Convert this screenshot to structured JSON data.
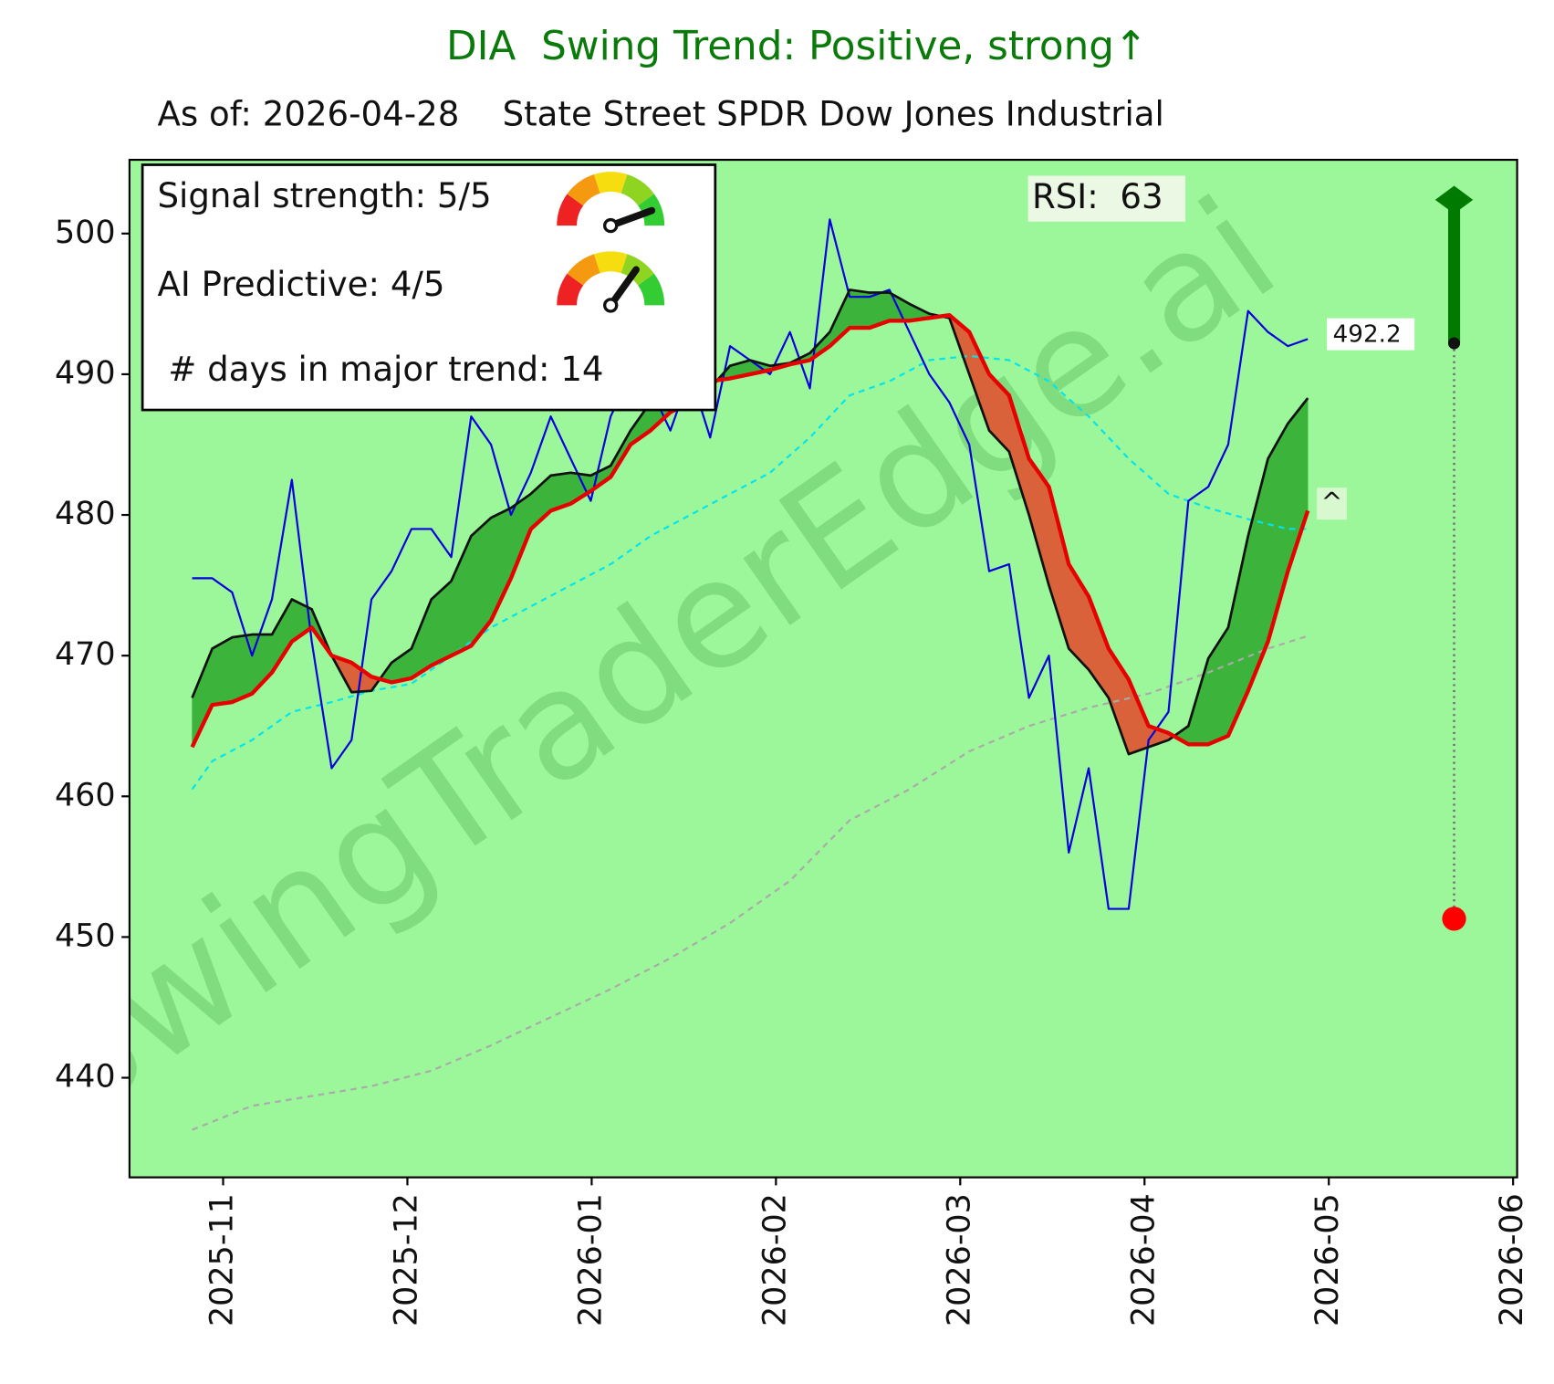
{
  "chart_data": {
    "type": "line",
    "title": "DIA  Swing Trend: Positive, strong↑",
    "subtitle": "As of: 2026-04-28    State Street SPDR Dow Jones Industrial",
    "annotations": {
      "rsi": "RSI:  63",
      "signal": "Signal strength: 5/5",
      "ai": "AI Predictive: 4/5",
      "days": " # days in major trend: 14",
      "marker": "^",
      "watermark": "SwingTraderEdge.ai"
    },
    "xlim": [
      -0.508,
      7.022
    ],
    "xticks": [
      {
        "value": 0,
        "label": "2025-11"
      },
      {
        "value": 1,
        "label": "2025-12"
      },
      {
        "value": 2,
        "label": "2026-01"
      },
      {
        "value": 3,
        "label": "2026-02"
      },
      {
        "value": 4,
        "label": "2026-03"
      },
      {
        "value": 5,
        "label": "2026-04"
      },
      {
        "value": 6,
        "label": "2026-05"
      },
      {
        "value": 7,
        "label": "2026-06"
      }
    ],
    "ylim": [
      432.92,
      505.24
    ],
    "yticks": [
      440,
      450,
      460,
      470,
      480,
      490,
      500
    ],
    "background": "#9cf79a",
    "fill_colors": {
      "above": "#3cb43c",
      "below": "#d9623b"
    },
    "x": [
      -0.168,
      -0.059,
      0.049,
      0.157,
      0.265,
      0.373,
      0.481,
      0.589,
      0.697,
      0.805,
      0.914,
      1.022,
      1.13,
      1.238,
      1.346,
      1.454,
      1.562,
      1.67,
      1.778,
      1.886,
      1.995,
      2.103,
      2.211,
      2.319,
      2.427,
      2.535,
      2.643,
      2.751,
      2.859,
      2.968,
      3.076,
      3.184,
      3.292,
      3.4,
      3.508,
      3.616,
      3.724,
      3.832,
      3.941,
      4.049,
      4.157,
      4.265,
      4.373,
      4.481,
      4.589,
      4.697,
      4.805,
      4.914,
      5.022,
      5.13,
      5.238,
      5.346,
      5.454,
      5.562,
      5.67,
      5.778,
      5.886
    ],
    "series": [
      {
        "color": "#0000dd",
        "width": 2,
        "values": [
          475.5,
          475.5,
          474.5,
          470,
          474,
          482.5,
          471,
          462,
          464,
          474,
          476,
          479,
          479,
          477,
          487,
          485,
          480,
          483,
          487,
          484,
          481,
          487,
          490,
          489,
          486,
          490,
          485.5,
          492,
          491,
          490,
          493,
          489,
          501,
          495.5,
          495.5,
          496,
          493,
          490,
          488,
          485,
          476,
          476.5,
          467,
          470,
          456,
          462,
          452,
          452,
          464,
          466,
          481,
          482,
          485,
          494.5,
          493,
          492,
          492.5
        ]
      },
      {
        "color": "#111111",
        "width": 2.5,
        "values": [
          467,
          470.5,
          471.3,
          471.5,
          471.5,
          474,
          473.3,
          470,
          467.4,
          467.5,
          469.5,
          470.5,
          474,
          475.3,
          478.5,
          479.8,
          480.5,
          481.5,
          482.8,
          483,
          482.8,
          483.5,
          486,
          488,
          488.5,
          489.5,
          489,
          490.6,
          491,
          490.6,
          490.8,
          491.5,
          493,
          496,
          495.8,
          495.8,
          495,
          494.3,
          494,
          490,
          486,
          484.5,
          480,
          475,
          470.5,
          469,
          467,
          463,
          463.5,
          464,
          465,
          469.8,
          472,
          478.5,
          484,
          486.5,
          488.3
        ]
      },
      {
        "color": "#e60000",
        "width": 4,
        "values": [
          463.5,
          466.5,
          466.7,
          467.3,
          468.8,
          471,
          472,
          470,
          469.5,
          468.5,
          468.1,
          468.4,
          469.3,
          470,
          470.7,
          472.5,
          475.5,
          479,
          480.3,
          480.8,
          481.7,
          482.7,
          485,
          486,
          487.3,
          488,
          489.5,
          489.7,
          490,
          490.3,
          490.7,
          491,
          492,
          493.3,
          493.3,
          493.8,
          493.8,
          494,
          494.2,
          493,
          490,
          488.5,
          484,
          482,
          476.5,
          474.2,
          470.5,
          468.3,
          465,
          464.5,
          463.7,
          463.7,
          464.3,
          467.5,
          471,
          476,
          480.3
        ]
      },
      {
        "color": "#00e5ee",
        "width": 2,
        "dashed": true,
        "x": [
          -0.168,
          -0.059,
          0.157,
          0.373,
          0.589,
          0.805,
          1.022,
          1.238,
          1.454,
          1.67,
          1.886,
          2.103,
          2.319,
          2.535,
          2.751,
          2.968,
          3.184,
          3.4,
          3.616,
          3.832,
          4.049,
          4.265,
          4.481,
          4.697,
          4.914,
          5.13,
          5.346,
          5.562,
          5.778,
          5.886
        ],
        "values": [
          460.5,
          462.5,
          464,
          466,
          466.7,
          467.5,
          468,
          470,
          472,
          473.5,
          475,
          476.5,
          478.5,
          480,
          481.5,
          483,
          485.5,
          488.5,
          489.5,
          491,
          491.3,
          491,
          489.5,
          487,
          484,
          481.5,
          480.5,
          479.7,
          479,
          479
        ]
      },
      {
        "color": "#aaaaaa",
        "width": 2,
        "dashed": true,
        "x": [
          -0.168,
          0.157,
          0.481,
          0.805,
          1.13,
          1.454,
          1.778,
          2.103,
          2.427,
          2.751,
          3.076,
          3.4,
          3.724,
          4.049,
          4.373,
          4.697,
          5.022,
          5.346,
          5.67,
          5.886
        ],
        "values": [
          436.3,
          438,
          438.7,
          439.4,
          440.5,
          442.3,
          444.3,
          446.3,
          448.5,
          451,
          454,
          458.3,
          460.5,
          463.2,
          465,
          466.3,
          467.3,
          468.8,
          470.5,
          471.4
        ]
      }
    ],
    "projection": {
      "x": 6.68,
      "top": 502.4,
      "current": 492.2,
      "bottom": 451.3,
      "up_color": "#007a00",
      "down_color": "#ff0000"
    }
  }
}
